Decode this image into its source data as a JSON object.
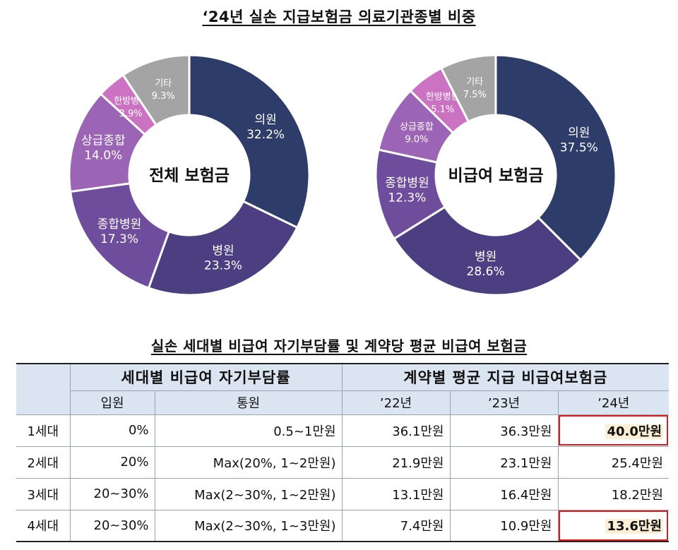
{
  "title_top": "‘24년 실손 지급보험금 의료기관종별 비중",
  "title_table": "실손 세대별 비급여 자기부담률 및 계약당 평균 비급여 보험금",
  "chart_data": [
    {
      "type": "pie",
      "center_label": "전체 보험금",
      "slices": [
        {
          "label": "의원",
          "value": 32.2,
          "value_text": "32.2%",
          "color": "#2e3c6a"
        },
        {
          "label": "병원",
          "value": 23.3,
          "value_text": "23.3%",
          "color": "#4b3f82"
        },
        {
          "label": "종합병원",
          "value": 17.3,
          "value_text": "17.3%",
          "color": "#6e4d9c"
        },
        {
          "label": "상급종합",
          "value": 14.0,
          "value_text": "14.0%",
          "color": "#9b64b4"
        },
        {
          "label": "한방병원",
          "value": 3.9,
          "value_text": "3.9%",
          "color": "#cc72c2"
        },
        {
          "label": "기타",
          "value": 9.3,
          "value_text": "9.3%",
          "color": "#a4a4a4"
        }
      ]
    },
    {
      "type": "pie",
      "center_label": "비급여 보험금",
      "slices": [
        {
          "label": "의원",
          "value": 37.5,
          "value_text": "37.5%",
          "color": "#2e3c6a"
        },
        {
          "label": "병원",
          "value": 28.6,
          "value_text": "28.6%",
          "color": "#4b3f82"
        },
        {
          "label": "종합병원",
          "value": 12.3,
          "value_text": "12.3%",
          "color": "#6e4d9c"
        },
        {
          "label": "상급종합",
          "value": 9.0,
          "value_text": "9.0%",
          "color": "#9b64b4"
        },
        {
          "label": "한방병원",
          "value": 5.1,
          "value_text": "5.1%",
          "color": "#cc72c2"
        },
        {
          "label": "기타",
          "value": 7.5,
          "value_text": "7.5%",
          "color": "#a4a4a4"
        }
      ]
    }
  ],
  "table": {
    "group_headers": [
      "세대별 비급여 자기부담률",
      "계약별 평균 지급 비급여보험금"
    ],
    "sub_headers": [
      "입원",
      "통원",
      "’22년",
      "’23년",
      "’24년"
    ],
    "rows": [
      {
        "gen": "1세대",
        "inpatient": "0%",
        "outpatient": "0.5~1만원",
        "y22": "36.1만원",
        "y23": "36.3만원",
        "y24": "40.0만원",
        "highlight": true
      },
      {
        "gen": "2세대",
        "inpatient": "20%",
        "outpatient": "Max(20%, 1~2만원)",
        "y22": "21.9만원",
        "y23": "23.1만원",
        "y24": "25.4만원",
        "highlight": false
      },
      {
        "gen": "3세대",
        "inpatient": "20~30%",
        "outpatient": "Max(2~30%, 1~2만원)",
        "y22": "13.1만원",
        "y23": "16.4만원",
        "y24": "18.2만원",
        "highlight": false
      },
      {
        "gen": "4세대",
        "inpatient": "20~30%",
        "outpatient": "Max(2~30%, 1~3만원)",
        "y22": "7.4만원",
        "y23": "10.9만원",
        "y24": "13.6만원",
        "highlight": true
      }
    ],
    "highlight_border_color": "#e01818",
    "highlight_fill_color": "#fcefd6",
    "header_fill_color": "#dbe5f1"
  }
}
